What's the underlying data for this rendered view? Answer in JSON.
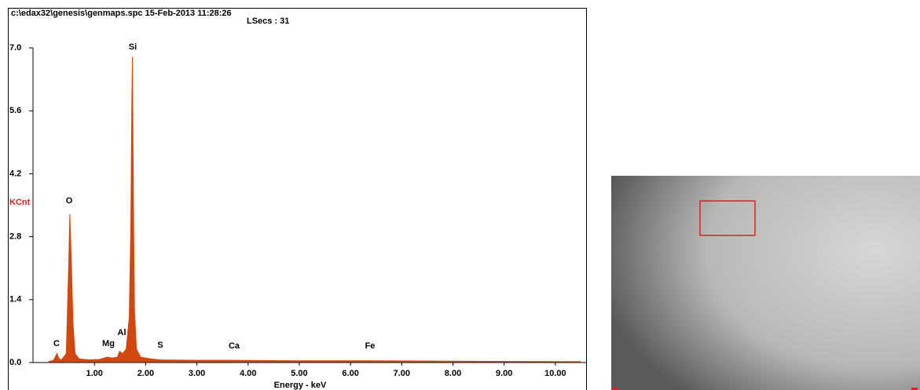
{
  "chart_data": {
    "type": "area",
    "title": "c:\\edax32\\genesis\\genmaps.spc  15-Feb-2013 11:28:26",
    "subtitle": "LSecs : 31",
    "x_label": "Energy - keV",
    "y_label": "KCnt",
    "color": "#d2470f",
    "x": [
      0.1,
      0.2,
      0.27,
      0.3,
      0.35,
      0.45,
      0.5,
      0.52,
      0.55,
      0.58,
      0.62,
      0.7,
      0.9,
      1.1,
      1.25,
      1.35,
      1.45,
      1.49,
      1.55,
      1.62,
      1.68,
      1.71,
      1.73,
      1.74,
      1.76,
      1.78,
      1.82,
      1.9,
      2.1,
      2.3,
      3.0,
      3.7,
      5.0,
      6.4,
      8.0,
      10.5
    ],
    "values": [
      0.02,
      0.05,
      0.2,
      0.1,
      0.05,
      0.2,
      2.3,
      3.3,
      2.2,
      0.9,
      0.2,
      0.08,
      0.06,
      0.07,
      0.12,
      0.1,
      0.12,
      0.25,
      0.2,
      0.3,
      1.0,
      3.0,
      5.8,
      6.8,
      3.7,
      1.2,
      0.3,
      0.12,
      0.08,
      0.06,
      0.05,
      0.05,
      0.04,
      0.04,
      0.03,
      0.02
    ],
    "annotations": [
      "C",
      "O",
      "Mg",
      "Al",
      "Si",
      "S",
      "Ca",
      "Fe"
    ],
    "xlim": [
      -0.2,
      10.6
    ],
    "xticks": [
      {
        "value": 1,
        "label": "1.00"
      },
      {
        "value": 2,
        "label": "2.00"
      },
      {
        "value": 3,
        "label": "3.00"
      },
      {
        "value": 4,
        "label": "4.00"
      },
      {
        "value": 5,
        "label": "5.00"
      },
      {
        "value": 6,
        "label": "6.00"
      },
      {
        "value": 7,
        "label": "7.00"
      },
      {
        "value": 8,
        "label": "8.00"
      },
      {
        "value": 9,
        "label": "9.00"
      },
      {
        "value": 10,
        "label": "10.00"
      }
    ],
    "ylim": [
      0,
      7
    ],
    "yticks": [
      {
        "value": 0,
        "label": "0.0"
      },
      1.4,
      2.8,
      4.2,
      5.6,
      {
        "value": 7,
        "label": "7.0"
      }
    ],
    "grid": false
  }
}
